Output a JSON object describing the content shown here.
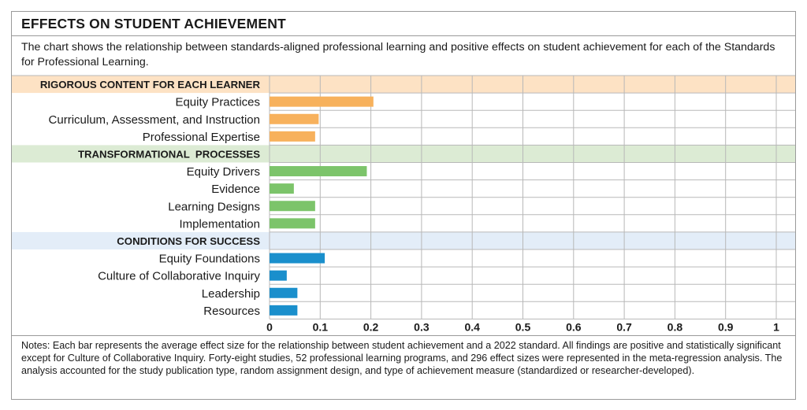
{
  "header": {
    "title": "EFFECTS ON STUDENT ACHIEVEMENT",
    "subtitle": "The chart shows the relationship between standards-aligned professional learning and positive effects on student achievement for each of the Standards for Professional Learning."
  },
  "notes": "Notes: Each bar represents the average effect size for the relationship between student achievement and a 2022 standard. All findings are positive and statistically significant except for Culture of Collaborative Inquiry. Forty-eight studies, 52 professional learning programs, and 296 effect sizes were represented in the meta-regression analysis. The analysis accounted for the study publication type, random assignment design, and type of achievement measure (standardized or researcher-developed).",
  "chart_data": {
    "type": "bar",
    "orientation": "horizontal",
    "xlim": [
      0,
      1
    ],
    "x_ticks": [
      "0",
      "0.1",
      "0.2",
      "0.3",
      "0.4",
      "0.5",
      "0.6",
      "0.7",
      "0.8",
      "0.9",
      "1"
    ],
    "grid": true,
    "groups": [
      {
        "name": "RIGOROUS CONTENT FOR EACH LEARNER",
        "band_color": "#fde2c4",
        "bar_color": "#f7b15c",
        "items": [
          {
            "label": "Equity Practices",
            "value": 0.205
          },
          {
            "label": "Curriculum, Assessment, and Instruction",
            "value": 0.097
          },
          {
            "label": "Professional Expertise",
            "value": 0.09
          }
        ]
      },
      {
        "name": "TRANSFORMATIONAL  PROCESSES",
        "band_color": "#dcebd4",
        "bar_color": "#7cc46a",
        "items": [
          {
            "label": "Equity Drivers",
            "value": 0.192
          },
          {
            "label": "Evidence",
            "value": 0.048
          },
          {
            "label": "Learning Designs",
            "value": 0.09
          },
          {
            "label": "Implementation",
            "value": 0.09
          }
        ]
      },
      {
        "name": "CONDITIONS FOR SUCCESS",
        "band_color": "#e3edf8",
        "bar_color": "#1a8fcc",
        "items": [
          {
            "label": "Equity Foundations",
            "value": 0.109
          },
          {
            "label": "Culture of Collaborative Inquiry",
            "value": 0.034
          },
          {
            "label": "Leadership",
            "value": 0.055
          },
          {
            "label": "Resources",
            "value": 0.055
          }
        ]
      }
    ]
  }
}
